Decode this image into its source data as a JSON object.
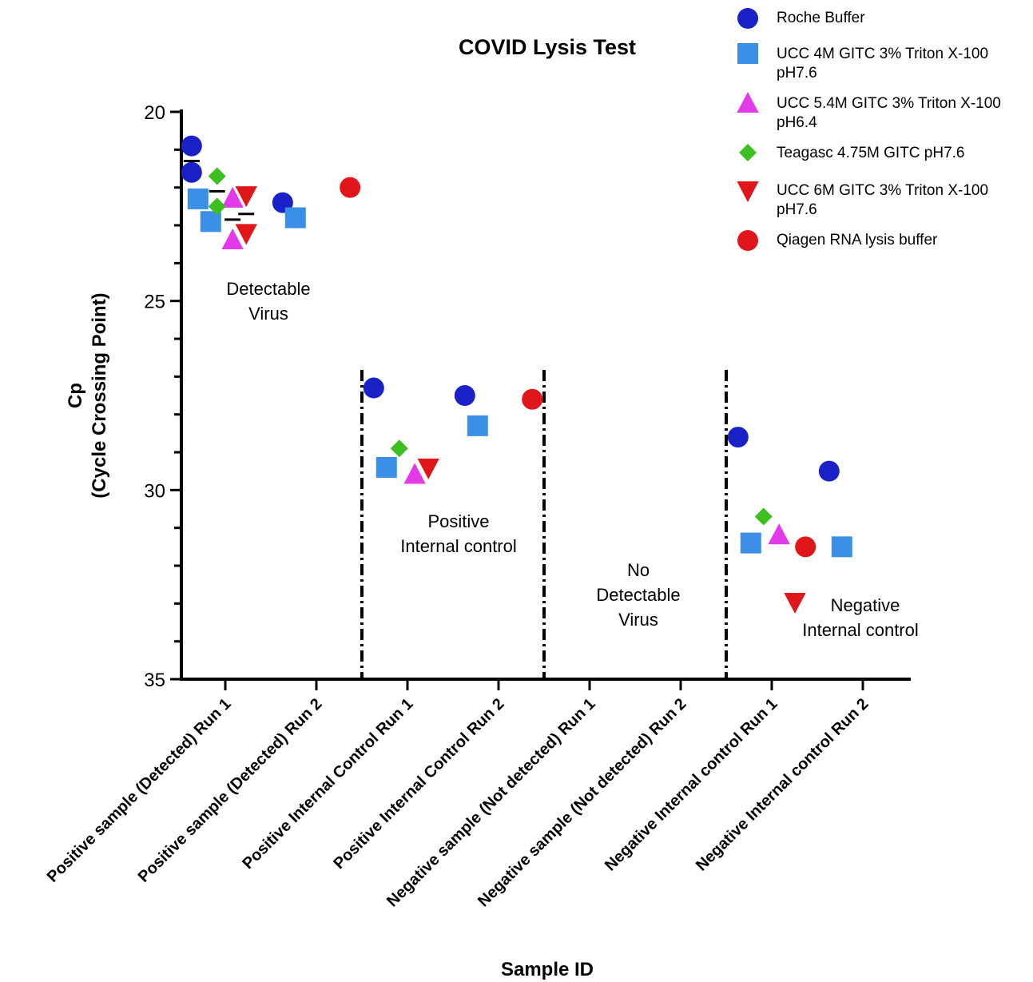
{
  "chart_data": {
    "type": "scatter",
    "title": "COVID Lysis Test",
    "xlabel": "Sample ID",
    "ylabel_lines": [
      "Cp",
      "(Cycle Crossing Point)"
    ],
    "y_axis": {
      "min": 20,
      "max": 35,
      "reversed": true,
      "major_ticks": [
        20,
        25,
        30,
        35
      ],
      "minor_step": 1
    },
    "categories": [
      "Positive sample (Detected) Run 1",
      "Positive sample (Detected) Run 2",
      "Positive Internal Control Run 1",
      "Positive Internal Control Run 2",
      "Negative sample (Not detected) Run 1",
      "Negative sample (Not detected) Run 2",
      "Negative Internal control Run 1",
      "Negative Internal control Run 2"
    ],
    "series": [
      {
        "name": "Roche Buffer",
        "marker": "circle",
        "color": "#1a22c7",
        "points": [
          {
            "category": 0,
            "offset": -0.37,
            "y": 20.9
          },
          {
            "category": 0,
            "offset": -0.37,
            "y": 21.6
          },
          {
            "category": 1,
            "offset": -0.37,
            "y": 22.4
          },
          {
            "category": 2,
            "offset": -0.37,
            "y": 27.3
          },
          {
            "category": 3,
            "offset": -0.37,
            "y": 27.5
          },
          {
            "category": 6,
            "offset": -0.37,
            "y": 28.6
          },
          {
            "category": 7,
            "offset": -0.37,
            "y": 29.5
          }
        ]
      },
      {
        "name": "UCC 4M GITC  3% Triton X-100 pH7.6",
        "label_lines": [
          "UCC 4M GITC  3% Triton X-100",
          "pH7.6"
        ],
        "marker": "square",
        "color": "#3b8fe6",
        "points": [
          {
            "category": 0,
            "offset": -0.3,
            "y": 22.3
          },
          {
            "category": 0,
            "offset": -0.16,
            "y": 22.9
          },
          {
            "category": 1,
            "offset": -0.23,
            "y": 22.8
          },
          {
            "category": 2,
            "offset": -0.23,
            "y": 29.4
          },
          {
            "category": 3,
            "offset": -0.23,
            "y": 28.3
          },
          {
            "category": 6,
            "offset": -0.23,
            "y": 31.4
          },
          {
            "category": 7,
            "offset": -0.23,
            "y": 31.5
          }
        ]
      },
      {
        "name": "UCC 5.4M GITC 3% Triton X-100 pH6.4",
        "label_lines": [
          "UCC 5.4M GITC 3% Triton X-100",
          "pH6.4"
        ],
        "marker": "triangle-up",
        "color": "#e23ae8",
        "points": [
          {
            "category": 0,
            "offset": 0.08,
            "y": 22.3
          },
          {
            "category": 0,
            "offset": 0.08,
            "y": 23.4
          },
          {
            "category": 2,
            "offset": 0.08,
            "y": 29.6
          },
          {
            "category": 6,
            "offset": 0.08,
            "y": 31.2
          }
        ]
      },
      {
        "name": "Teagasc 4.75M GITC pH7.6",
        "marker": "diamond",
        "color": "#3cbf1f",
        "points": [
          {
            "category": 0,
            "offset": -0.09,
            "y": 21.7
          },
          {
            "category": 0,
            "offset": -0.09,
            "y": 22.5
          },
          {
            "category": 2,
            "offset": -0.09,
            "y": 28.9
          },
          {
            "category": 6,
            "offset": -0.09,
            "y": 30.7
          }
        ]
      },
      {
        "name": "UCC 6M GITC 3% Triton X-100 pH7.6",
        "label_lines": [
          "UCC 6M GITC 3% Triton X-100",
          "pH7.6"
        ],
        "marker": "triangle-down",
        "color": "#e0161b",
        "points": [
          {
            "category": 0,
            "offset": 0.23,
            "y": 22.2
          },
          {
            "category": 0,
            "offset": 0.23,
            "y": 23.2
          },
          {
            "category": 2,
            "offset": 0.23,
            "y": 29.4
          }
        ]
      },
      {
        "name": "Qiagen RNA lysis buffer",
        "marker": "circle",
        "color": "#e0161b",
        "points": [
          {
            "category": 1,
            "offset": 0.37,
            "y": 22.0
          },
          {
            "category": 3,
            "offset": 0.37,
            "y": 27.6
          },
          {
            "category": 6,
            "offset": 0.37,
            "y": 31.5
          }
        ]
      }
    ],
    "error_bars": [
      {
        "category": 0,
        "offset": -0.37,
        "y": 21.3
      },
      {
        "category": 0,
        "offset": -0.09,
        "y": 22.1
      },
      {
        "category": 0,
        "offset": 0.08,
        "y": 22.85
      },
      {
        "category": 0,
        "offset": 0.23,
        "y": 22.7
      }
    ],
    "dividers_after_category": [
      1,
      3,
      5
    ],
    "annotations": [
      {
        "lines": [
          "Detectable",
          "Virus"
        ]
      },
      {
        "lines": [
          "Positive",
          "Internal control"
        ]
      },
      {
        "lines": [
          "No",
          "Detectable",
          "Virus"
        ]
      },
      {
        "lines": [
          "Negative",
          "Internal control"
        ]
      }
    ],
    "legend_position": "top-right"
  }
}
